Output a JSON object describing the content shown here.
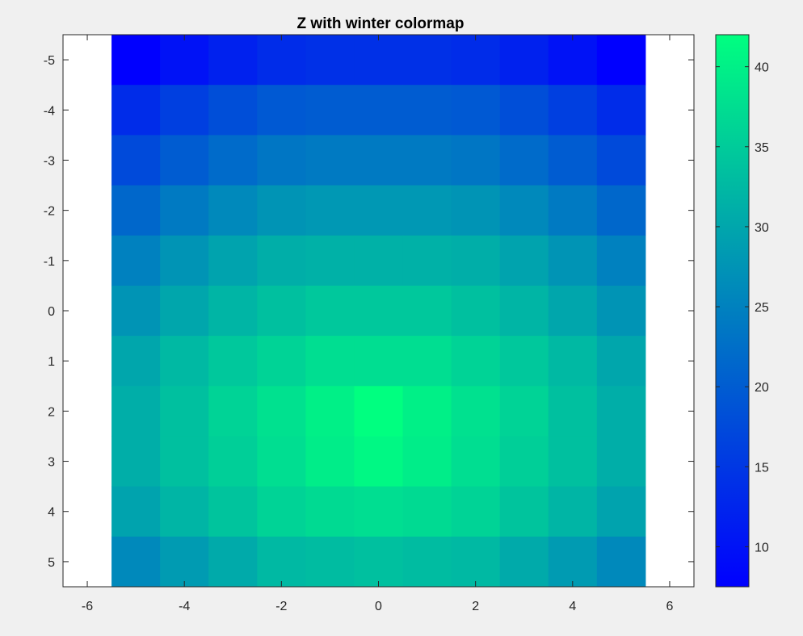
{
  "chart_data": {
    "type": "heatmap",
    "title": "Z with winter colormap",
    "xlabel": "",
    "ylabel": "",
    "x": [
      -5,
      -4,
      -3,
      -2,
      -1,
      0,
      1,
      2,
      3,
      4,
      5
    ],
    "y": [
      -5,
      -4,
      -3,
      -2,
      -1,
      0,
      1,
      2,
      3,
      4,
      5
    ],
    "z": [
      [
        7.5,
        10,
        12,
        13.5,
        14,
        14,
        14,
        13.5,
        12,
        10,
        7.5
      ],
      [
        13.5,
        16,
        18,
        19.5,
        20,
        20,
        20,
        19.5,
        18,
        16,
        13.5
      ],
      [
        17.5,
        20,
        22,
        23.5,
        24,
        24,
        24,
        23.5,
        22,
        20,
        17.5
      ],
      [
        21.5,
        24,
        26,
        27.5,
        28,
        28,
        28,
        27.5,
        26,
        24,
        21.5
      ],
      [
        25,
        27.5,
        29.5,
        31,
        31.5,
        31.5,
        31.5,
        31,
        29.5,
        27.5,
        25
      ],
      [
        27.5,
        30,
        32,
        33.5,
        34.5,
        34.5,
        34.5,
        33.5,
        32,
        30,
        27.5
      ],
      [
        30,
        32.5,
        34.5,
        36,
        37.5,
        37.5,
        37.5,
        36,
        34.5,
        32.5,
        30
      ],
      [
        31,
        33.5,
        36,
        38,
        40,
        42,
        40,
        38,
        36,
        33.5,
        31
      ],
      [
        31,
        33.5,
        35.5,
        37.5,
        39.5,
        41,
        39.5,
        37.5,
        35.5,
        33.5,
        31
      ],
      [
        29.5,
        32,
        34,
        36,
        37,
        37.5,
        37,
        36,
        34,
        32,
        29.5
      ],
      [
        26,
        28.5,
        30.5,
        32.5,
        33,
        33.5,
        33,
        32.5,
        30.5,
        28.5,
        26
      ]
    ],
    "xlim": [
      -6.5,
      6.5
    ],
    "ylim": [
      -5.5,
      5.5
    ],
    "y_reversed": true,
    "xticks": [
      "-6",
      "-4",
      "-2",
      "0",
      "2",
      "4",
      "6"
    ],
    "yticks": [
      "-5",
      "-4",
      "-3",
      "-2",
      "-1",
      "0",
      "1",
      "2",
      "3",
      "4",
      "5"
    ],
    "colormap": "winter",
    "colormap_colors": [
      "#0000ff",
      "#00ff80"
    ],
    "clim": [
      7.5,
      42
    ],
    "colorbar_ticks": [
      "10",
      "15",
      "20",
      "25",
      "30",
      "35",
      "40"
    ],
    "grid": false,
    "colorbar_position": "right"
  }
}
